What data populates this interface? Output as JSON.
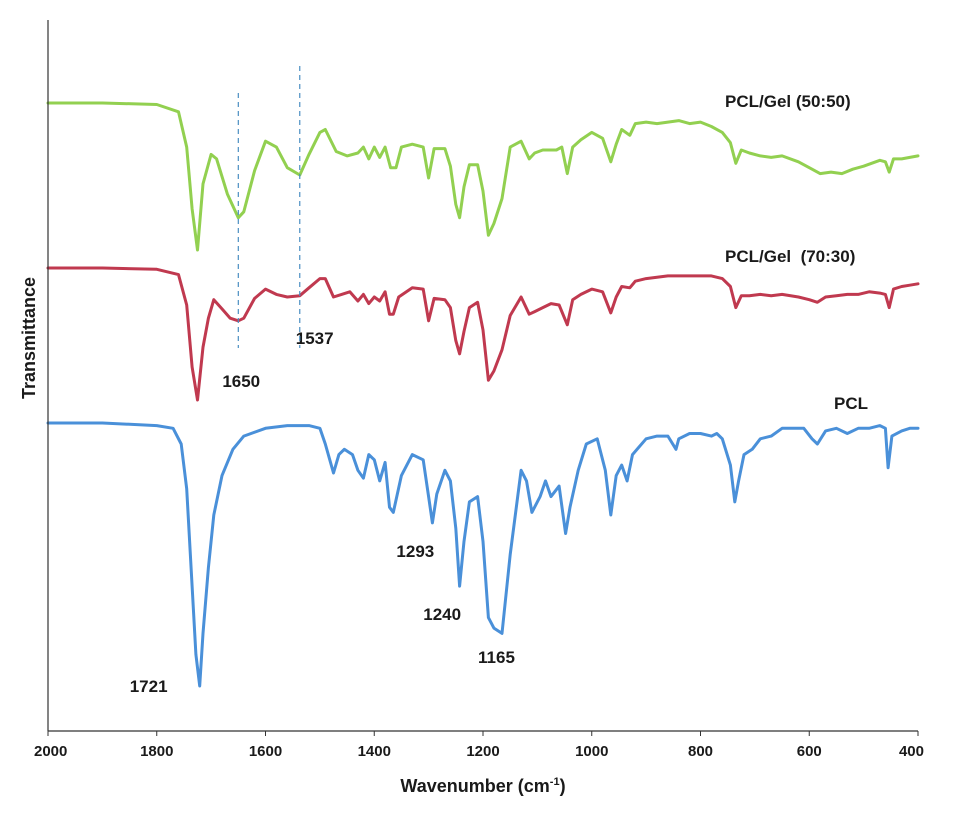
{
  "chart_data": {
    "type": "line",
    "xlabel": "Wavenumber (cm-1)",
    "xlabel_parts": {
      "main": "Wavenumber (cm",
      "sup": "-1",
      "end": ")"
    },
    "ylabel": "Transmittance",
    "xlim": [
      2000,
      400
    ],
    "x_reversed": true,
    "y_ticks_shown": false,
    "grid": false,
    "x_ticks": [
      "2000",
      "1800",
      "1600",
      "1400",
      "1200",
      "1000",
      "800",
      "600",
      "400"
    ],
    "series": [
      {
        "name": "PCL/Gel (50:50)",
        "color": "#92d050",
        "points": [
          [
            2000,
            0.0
          ],
          [
            1900,
            0.0
          ],
          [
            1800,
            0.01
          ],
          [
            1760,
            0.06
          ],
          [
            1745,
            0.3
          ],
          [
            1735,
            0.72
          ],
          [
            1725,
            1.0
          ],
          [
            1715,
            0.55
          ],
          [
            1700,
            0.35
          ],
          [
            1690,
            0.38
          ],
          [
            1670,
            0.62
          ],
          [
            1650,
            0.78
          ],
          [
            1640,
            0.74
          ],
          [
            1620,
            0.46
          ],
          [
            1600,
            0.26
          ],
          [
            1580,
            0.3
          ],
          [
            1560,
            0.44
          ],
          [
            1537,
            0.49
          ],
          [
            1520,
            0.35
          ],
          [
            1500,
            0.2
          ],
          [
            1490,
            0.18
          ],
          [
            1470,
            0.33
          ],
          [
            1450,
            0.36
          ],
          [
            1430,
            0.34
          ],
          [
            1420,
            0.3
          ],
          [
            1410,
            0.38
          ],
          [
            1400,
            0.3
          ],
          [
            1390,
            0.37
          ],
          [
            1380,
            0.3
          ],
          [
            1370,
            0.44
          ],
          [
            1360,
            0.44
          ],
          [
            1350,
            0.3
          ],
          [
            1330,
            0.28
          ],
          [
            1310,
            0.3
          ],
          [
            1300,
            0.51
          ],
          [
            1290,
            0.31
          ],
          [
            1270,
            0.31
          ],
          [
            1260,
            0.43
          ],
          [
            1250,
            0.69
          ],
          [
            1243,
            0.78
          ],
          [
            1235,
            0.57
          ],
          [
            1225,
            0.42
          ],
          [
            1210,
            0.42
          ],
          [
            1200,
            0.6
          ],
          [
            1190,
            0.9
          ],
          [
            1180,
            0.82
          ],
          [
            1165,
            0.65
          ],
          [
            1150,
            0.3
          ],
          [
            1130,
            0.26
          ],
          [
            1115,
            0.38
          ],
          [
            1105,
            0.34
          ],
          [
            1090,
            0.32
          ],
          [
            1075,
            0.32
          ],
          [
            1065,
            0.32
          ],
          [
            1055,
            0.3
          ],
          [
            1045,
            0.48
          ],
          [
            1035,
            0.3
          ],
          [
            1020,
            0.25
          ],
          [
            1000,
            0.2
          ],
          [
            980,
            0.24
          ],
          [
            965,
            0.4
          ],
          [
            955,
            0.28
          ],
          [
            945,
            0.18
          ],
          [
            930,
            0.22
          ],
          [
            920,
            0.14
          ],
          [
            900,
            0.13
          ],
          [
            880,
            0.14
          ],
          [
            860,
            0.13
          ],
          [
            840,
            0.12
          ],
          [
            820,
            0.14
          ],
          [
            800,
            0.13
          ],
          [
            780,
            0.16
          ],
          [
            760,
            0.2
          ],
          [
            745,
            0.27
          ],
          [
            735,
            0.41
          ],
          [
            725,
            0.32
          ],
          [
            710,
            0.34
          ],
          [
            690,
            0.36
          ],
          [
            670,
            0.37
          ],
          [
            650,
            0.36
          ],
          [
            620,
            0.4
          ],
          [
            600,
            0.44
          ],
          [
            580,
            0.48
          ],
          [
            560,
            0.47
          ],
          [
            540,
            0.48
          ],
          [
            520,
            0.45
          ],
          [
            500,
            0.43
          ],
          [
            470,
            0.39
          ],
          [
            460,
            0.4
          ],
          [
            453,
            0.47
          ],
          [
            445,
            0.38
          ],
          [
            430,
            0.38
          ],
          [
            415,
            0.37
          ],
          [
            400,
            0.36
          ]
        ]
      },
      {
        "name": "PCL/Gel  (70:30)",
        "color": "#c0394f",
        "points": [
          [
            2000,
            0.0
          ],
          [
            1900,
            0.0
          ],
          [
            1800,
            0.01
          ],
          [
            1760,
            0.05
          ],
          [
            1745,
            0.28
          ],
          [
            1735,
            0.75
          ],
          [
            1725,
            1.0
          ],
          [
            1715,
            0.6
          ],
          [
            1705,
            0.38
          ],
          [
            1695,
            0.24
          ],
          [
            1680,
            0.31
          ],
          [
            1665,
            0.38
          ],
          [
            1650,
            0.4
          ],
          [
            1640,
            0.38
          ],
          [
            1620,
            0.23
          ],
          [
            1600,
            0.16
          ],
          [
            1580,
            0.2
          ],
          [
            1560,
            0.22
          ],
          [
            1537,
            0.21
          ],
          [
            1520,
            0.15
          ],
          [
            1500,
            0.08
          ],
          [
            1490,
            0.08
          ],
          [
            1475,
            0.22
          ],
          [
            1460,
            0.2
          ],
          [
            1445,
            0.18
          ],
          [
            1430,
            0.25
          ],
          [
            1420,
            0.2
          ],
          [
            1410,
            0.27
          ],
          [
            1400,
            0.22
          ],
          [
            1390,
            0.25
          ],
          [
            1380,
            0.18
          ],
          [
            1372,
            0.35
          ],
          [
            1365,
            0.35
          ],
          [
            1355,
            0.22
          ],
          [
            1330,
            0.15
          ],
          [
            1310,
            0.16
          ],
          [
            1300,
            0.4
          ],
          [
            1290,
            0.23
          ],
          [
            1270,
            0.24
          ],
          [
            1260,
            0.3
          ],
          [
            1250,
            0.55
          ],
          [
            1243,
            0.65
          ],
          [
            1235,
            0.48
          ],
          [
            1225,
            0.3
          ],
          [
            1210,
            0.26
          ],
          [
            1200,
            0.47
          ],
          [
            1190,
            0.85
          ],
          [
            1180,
            0.78
          ],
          [
            1165,
            0.62
          ],
          [
            1150,
            0.36
          ],
          [
            1130,
            0.22
          ],
          [
            1115,
            0.35
          ],
          [
            1105,
            0.33
          ],
          [
            1090,
            0.3
          ],
          [
            1075,
            0.27
          ],
          [
            1060,
            0.28
          ],
          [
            1045,
            0.43
          ],
          [
            1035,
            0.24
          ],
          [
            1020,
            0.2
          ],
          [
            1000,
            0.16
          ],
          [
            980,
            0.18
          ],
          [
            965,
            0.34
          ],
          [
            955,
            0.22
          ],
          [
            945,
            0.14
          ],
          [
            930,
            0.15
          ],
          [
            920,
            0.1
          ],
          [
            900,
            0.08
          ],
          [
            880,
            0.07
          ],
          [
            860,
            0.06
          ],
          [
            840,
            0.06
          ],
          [
            820,
            0.06
          ],
          [
            800,
            0.06
          ],
          [
            780,
            0.06
          ],
          [
            760,
            0.08
          ],
          [
            745,
            0.14
          ],
          [
            735,
            0.3
          ],
          [
            725,
            0.21
          ],
          [
            710,
            0.21
          ],
          [
            690,
            0.2
          ],
          [
            670,
            0.21
          ],
          [
            650,
            0.2
          ],
          [
            620,
            0.22
          ],
          [
            600,
            0.24
          ],
          [
            585,
            0.26
          ],
          [
            570,
            0.22
          ],
          [
            550,
            0.21
          ],
          [
            530,
            0.2
          ],
          [
            510,
            0.2
          ],
          [
            490,
            0.18
          ],
          [
            470,
            0.19
          ],
          [
            460,
            0.2
          ],
          [
            453,
            0.3
          ],
          [
            445,
            0.16
          ],
          [
            430,
            0.14
          ],
          [
            415,
            0.13
          ],
          [
            400,
            0.12
          ]
        ]
      },
      {
        "name": "PCL",
        "color": "#4a90d9",
        "points": [
          [
            2000,
            0.0
          ],
          [
            1900,
            0.0
          ],
          [
            1800,
            0.01
          ],
          [
            1770,
            0.02
          ],
          [
            1755,
            0.08
          ],
          [
            1745,
            0.25
          ],
          [
            1735,
            0.62
          ],
          [
            1728,
            0.88
          ],
          [
            1721,
            1.0
          ],
          [
            1715,
            0.8
          ],
          [
            1705,
            0.55
          ],
          [
            1695,
            0.35
          ],
          [
            1680,
            0.2
          ],
          [
            1660,
            0.1
          ],
          [
            1640,
            0.05
          ],
          [
            1600,
            0.02
          ],
          [
            1560,
            0.01
          ],
          [
            1520,
            0.01
          ],
          [
            1500,
            0.02
          ],
          [
            1490,
            0.08
          ],
          [
            1475,
            0.19
          ],
          [
            1465,
            0.12
          ],
          [
            1455,
            0.1
          ],
          [
            1440,
            0.12
          ],
          [
            1430,
            0.18
          ],
          [
            1420,
            0.21
          ],
          [
            1410,
            0.12
          ],
          [
            1400,
            0.14
          ],
          [
            1390,
            0.22
          ],
          [
            1380,
            0.15
          ],
          [
            1372,
            0.32
          ],
          [
            1365,
            0.34
          ],
          [
            1350,
            0.2
          ],
          [
            1330,
            0.12
          ],
          [
            1310,
            0.14
          ],
          [
            1300,
            0.28
          ],
          [
            1293,
            0.38
          ],
          [
            1285,
            0.27
          ],
          [
            1270,
            0.18
          ],
          [
            1260,
            0.22
          ],
          [
            1250,
            0.4
          ],
          [
            1243,
            0.62
          ],
          [
            1235,
            0.45
          ],
          [
            1225,
            0.3
          ],
          [
            1210,
            0.28
          ],
          [
            1200,
            0.45
          ],
          [
            1190,
            0.74
          ],
          [
            1180,
            0.78
          ],
          [
            1165,
            0.8
          ],
          [
            1150,
            0.5
          ],
          [
            1130,
            0.18
          ],
          [
            1120,
            0.22
          ],
          [
            1110,
            0.34
          ],
          [
            1095,
            0.28
          ],
          [
            1085,
            0.22
          ],
          [
            1075,
            0.28
          ],
          [
            1060,
            0.24
          ],
          [
            1048,
            0.42
          ],
          [
            1040,
            0.32
          ],
          [
            1025,
            0.18
          ],
          [
            1010,
            0.08
          ],
          [
            990,
            0.06
          ],
          [
            975,
            0.18
          ],
          [
            965,
            0.35
          ],
          [
            955,
            0.2
          ],
          [
            945,
            0.16
          ],
          [
            935,
            0.22
          ],
          [
            925,
            0.12
          ],
          [
            900,
            0.06
          ],
          [
            880,
            0.05
          ],
          [
            860,
            0.05
          ],
          [
            845,
            0.1
          ],
          [
            840,
            0.06
          ],
          [
            820,
            0.04
          ],
          [
            800,
            0.04
          ],
          [
            780,
            0.05
          ],
          [
            770,
            0.04
          ],
          [
            760,
            0.06
          ],
          [
            745,
            0.16
          ],
          [
            737,
            0.3
          ],
          [
            730,
            0.22
          ],
          [
            720,
            0.12
          ],
          [
            705,
            0.1
          ],
          [
            690,
            0.06
          ],
          [
            670,
            0.05
          ],
          [
            650,
            0.02
          ],
          [
            630,
            0.02
          ],
          [
            610,
            0.02
          ],
          [
            595,
            0.06
          ],
          [
            585,
            0.08
          ],
          [
            570,
            0.03
          ],
          [
            550,
            0.02
          ],
          [
            530,
            0.04
          ],
          [
            510,
            0.02
          ],
          [
            490,
            0.02
          ],
          [
            470,
            0.01
          ],
          [
            460,
            0.02
          ],
          [
            455,
            0.17
          ],
          [
            448,
            0.05
          ],
          [
            430,
            0.03
          ],
          [
            415,
            0.02
          ],
          [
            400,
            0.02
          ]
        ]
      }
    ],
    "annotations": {
      "peaks": [
        {
          "label": "1721",
          "x": 1721
        },
        {
          "label": "1293",
          "x": 1293
        },
        {
          "label": "1240",
          "x": 1240
        },
        {
          "label": "1165",
          "x": 1165
        },
        {
          "label": "1650",
          "x": 1650
        },
        {
          "label": "1537",
          "x": 1537
        }
      ],
      "reference_lines_at": [
        1650,
        1537
      ]
    }
  }
}
